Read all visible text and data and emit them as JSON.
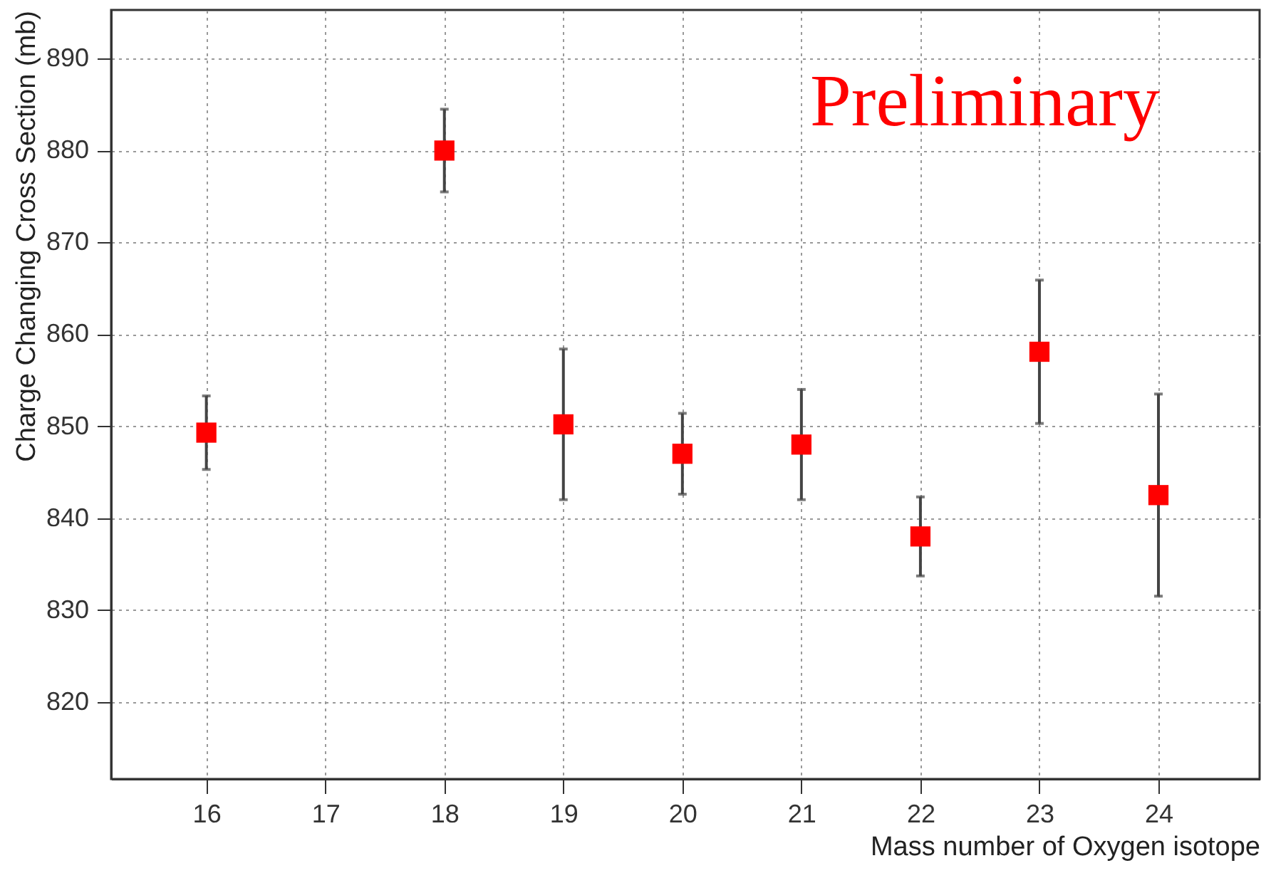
{
  "chart_data": {
    "type": "scatter",
    "xlabel": "Mass number of Oxygen isotope",
    "ylabel": "Charge Changing Cross Section (mb)",
    "annotations": [
      "Preliminary"
    ],
    "x": [
      16,
      18,
      19,
      20,
      21,
      22,
      23,
      24
    ],
    "series": [
      {
        "color": "#ff0000",
        "values": [
          849.3,
          880.0,
          850.2,
          847.0,
          848.0,
          838.0,
          858.1,
          842.5
        ],
        "errors": [
          4,
          4.5,
          8.2,
          4.4,
          6,
          4.3,
          7.8,
          11
        ]
      }
    ],
    "xlim": [
      15.2,
      24.85
    ],
    "xticks": [
      16,
      17,
      18,
      19,
      20,
      21,
      22,
      23,
      24
    ],
    "ylim": [
      811.6,
      895.3
    ],
    "yticks": [
      820,
      830,
      840,
      850,
      860,
      870,
      880,
      890
    ],
    "grid": true,
    "marker": "square"
  }
}
